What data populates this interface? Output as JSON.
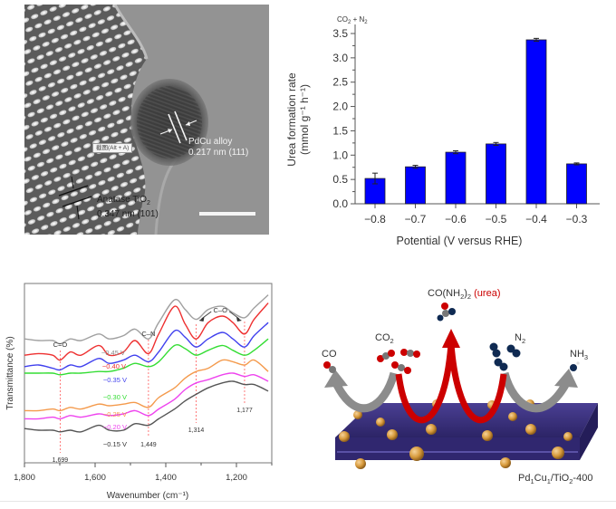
{
  "figure": {
    "panel_tem": {
      "pdcu_label_line1": "PdCu alloy",
      "pdcu_label_line2": "0.217 nm (111)",
      "tio2_label_line1": "Anatase TiO",
      "tio2_label_sub": "2",
      "tio2_label_line2": "0.347 nm (101)",
      "overlay_tooltip": "截图(Alt + A)"
    },
    "panel_scheme": {
      "urea_formula_prefix": "CO(NH",
      "urea_formula_sub1": "2",
      "urea_formula_mid": ")",
      "urea_formula_sub2": "2",
      "urea_name": "(urea)",
      "co_label": "CO",
      "co2_label": "CO",
      "co2_sub": "2",
      "n2_label": "N",
      "n2_sub": "2",
      "nh3_label": "NH",
      "nh3_sub": "3",
      "catalyst_label_parts": [
        "Pd",
        "1",
        "Cu",
        "1",
        "/TiO",
        "2",
        "-400"
      ],
      "colors": {
        "urea_arrow": "#cc0000",
        "side_arrow": "#8c8c8c",
        "support": "#3a2f7a",
        "particle": "#d79a3c",
        "nitrogen": "#0f2a52",
        "oxygen": "#cc0000",
        "carbon": "#777777"
      }
    }
  },
  "chart_data": [
    {
      "type": "bar",
      "title": "",
      "annotation": "CO2 + N2",
      "annotation_parts": [
        "CO",
        "2",
        " + N",
        "2"
      ],
      "categories": [
        "−0.8",
        "−0.7",
        "−0.6",
        "−0.5",
        "−0.4",
        "−0.3"
      ],
      "values": [
        0.52,
        0.76,
        1.06,
        1.23,
        3.37,
        0.82
      ],
      "errors": [
        0.11,
        0.03,
        0.03,
        0.03,
        0.03,
        0.02
      ],
      "xlabel": "Potential (V versus RHE)",
      "ylabel_line1": "Urea formation rate",
      "ylabel_line2": "(mmol g⁻¹ h⁻¹)",
      "ylim": [
        0,
        3.5
      ],
      "yticks": [
        "0.0",
        "0.5",
        "1.0",
        "1.5",
        "2.0",
        "2.5",
        "3.0",
        "3.5"
      ],
      "ytick_values": [
        0,
        0.5,
        1.0,
        1.5,
        2.0,
        2.5,
        3.0,
        3.5
      ],
      "bar_color": "#0000ff",
      "grid": false
    },
    {
      "type": "line",
      "title": "",
      "xlabel": "Wavenumber (cm⁻¹)",
      "ylabel": "Transmittance (%)",
      "xlim": [
        1800,
        1100
      ],
      "xticks": [
        1800,
        1600,
        1400,
        1200
      ],
      "xtick_labels": [
        "1,800",
        "1,600",
        "1,400",
        "1,200"
      ],
      "minor_xticks": [
        1700,
        1500,
        1300,
        1100
      ],
      "grid": false,
      "x": [
        1800,
        1760,
        1720,
        1699,
        1670,
        1640,
        1590,
        1560,
        1520,
        1487,
        1449,
        1420,
        1375,
        1345,
        1314,
        1280,
        1240,
        1210,
        1177,
        1150,
        1110
      ],
      "series": [
        {
          "name": "−0.45 V",
          "color": "#a0a0a0",
          "values": [
            7.6,
            7.5,
            7.5,
            7.3,
            7.6,
            7.5,
            7.9,
            7.6,
            7.8,
            8.2,
            7.6,
            8.6,
            10.0,
            9.4,
            8.8,
            9.4,
            9.6,
            9.2,
            8.9,
            9.5,
            10.3
          ]
        },
        {
          "name": "−0.40 V",
          "color": "#ee3030",
          "values": [
            6.6,
            6.7,
            6.6,
            6.3,
            6.8,
            6.6,
            7.2,
            6.6,
            6.8,
            7.5,
            6.7,
            7.9,
            9.6,
            8.5,
            7.6,
            8.6,
            9.0,
            8.6,
            7.9,
            8.8,
            9.8
          ]
        },
        {
          "name": "−0.35 V",
          "color": "#4040ee",
          "values": [
            5.9,
            6.0,
            5.8,
            5.7,
            6.0,
            5.9,
            6.4,
            6.1,
            6.3,
            6.6,
            6.2,
            6.8,
            8.1,
            7.7,
            7.1,
            7.6,
            8.0,
            7.6,
            7.1,
            7.8,
            8.6
          ]
        },
        {
          "name": "−0.30 V",
          "color": "#33dd33",
          "values": [
            5.5,
            5.5,
            5.5,
            5.4,
            5.5,
            5.5,
            5.6,
            5.6,
            5.8,
            6.1,
            5.9,
            6.2,
            7.2,
            7.0,
            6.6,
            6.9,
            7.2,
            6.9,
            6.6,
            6.9,
            7.6
          ]
        },
        {
          "name": "−0.25 V",
          "color": "#f49a4c",
          "values": [
            3.2,
            3.2,
            3.3,
            3.2,
            3.4,
            3.3,
            3.6,
            3.5,
            3.6,
            3.7,
            3.4,
            4.0,
            4.6,
            5.2,
            5.6,
            5.8,
            6.3,
            6.2,
            6.0,
            6.3,
            5.6
          ]
        },
        {
          "name": "−0.20 V",
          "color": "#ee44ee",
          "values": [
            2.7,
            2.7,
            2.8,
            2.7,
            2.9,
            2.8,
            3.0,
            2.9,
            3.0,
            3.2,
            2.9,
            3.3,
            3.9,
            4.5,
            4.9,
            5.1,
            5.4,
            5.5,
            5.3,
            5.4,
            5.0
          ]
        },
        {
          "name": "−0.15 V",
          "color": "#555555",
          "values": [
            2.1,
            2.0,
            2.0,
            1.9,
            2.0,
            1.9,
            2.3,
            2.0,
            2.0,
            2.4,
            2.3,
            2.7,
            3.3,
            3.8,
            4.2,
            4.6,
            4.9,
            5.0,
            4.8,
            4.8,
            4.4
          ]
        }
      ],
      "ylim": [
        0,
        11
      ],
      "annotations": {
        "bond_labels": [
          "C=O",
          "C–N",
          "C–O"
        ],
        "peak_positions": [
          1699,
          1449,
          1314,
          1177
        ],
        "peak_labels": [
          "1,699",
          "1,449",
          "1,314",
          "1,177"
        ]
      }
    }
  ]
}
